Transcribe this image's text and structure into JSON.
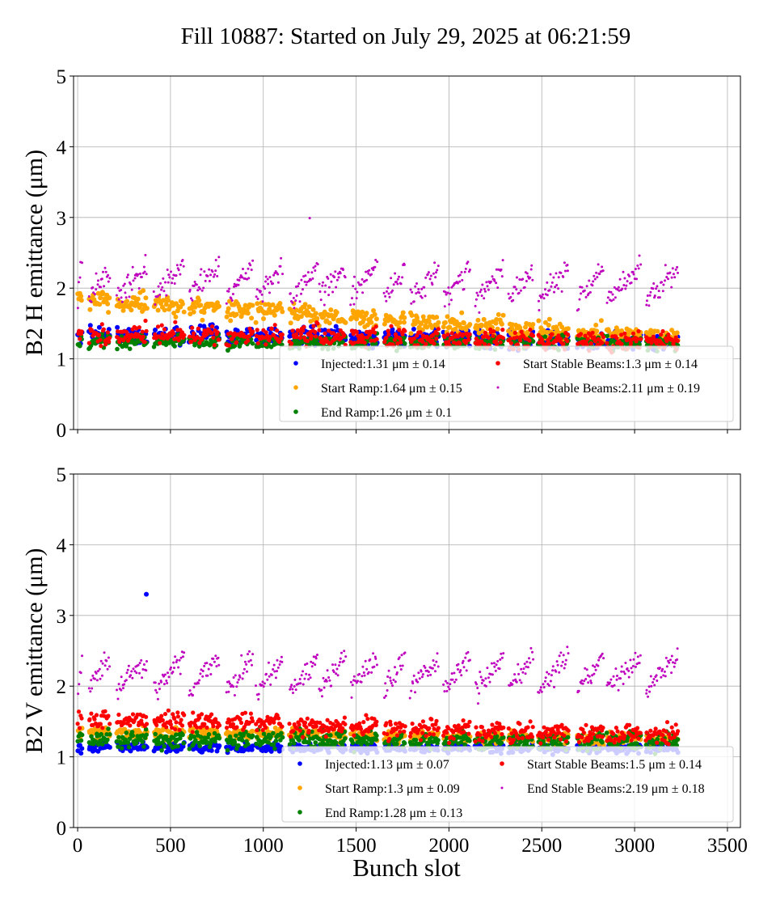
{
  "chart_data": {
    "type": "scatter",
    "title": "Fill 10887: Started on July 29, 2025 at 06:21:59",
    "xlabel": "Bunch slot",
    "xlim": [
      -22,
      3570
    ],
    "xticks": [
      0,
      500,
      1000,
      1500,
      2000,
      2500,
      3000,
      3500
    ],
    "grid": true,
    "trains": [
      [
        0,
        20
      ],
      [
        60,
        170
      ],
      [
        210,
        370
      ],
      [
        410,
        570
      ],
      [
        600,
        760
      ],
      [
        800,
        940
      ],
      [
        960,
        1100
      ],
      [
        1140,
        1290
      ],
      [
        1300,
        1440
      ],
      [
        1470,
        1610
      ],
      [
        1650,
        1760
      ],
      [
        1790,
        1940
      ],
      [
        1970,
        2110
      ],
      [
        2140,
        2290
      ],
      [
        2320,
        2450
      ],
      [
        2480,
        2640
      ],
      [
        2690,
        2830
      ],
      [
        2850,
        3030
      ],
      [
        3060,
        3230
      ]
    ],
    "panels": [
      {
        "ylabel": "B2 H emittance (μm)",
        "ylim": [
          0,
          5
        ],
        "yticks": [
          0,
          1,
          2,
          3,
          4,
          5
        ],
        "legend_placement": "lower-right",
        "series": [
          {
            "name": "Injected:1.31 μm ± 0.14",
            "color": "#0000ff",
            "mean": 1.31,
            "std": 0.14,
            "trend": [
              1.35,
              1.25
            ],
            "rise": 0.0
          },
          {
            "name": "Start Ramp:1.64 μm ± 0.15",
            "color": "#ffa500",
            "mean": 1.64,
            "std": 0.15,
            "trend": [
              1.85,
              1.3
            ],
            "rise": 0.0
          },
          {
            "name": "End Ramp:1.26 μm ± 0.1",
            "color": "#008000",
            "mean": 1.26,
            "std": 0.1,
            "trend": [
              1.25,
              1.22
            ],
            "rise": 0.05
          },
          {
            "name": "Start Stable Beams:1.3 μm ± 0.14",
            "color": "#ff0000",
            "mean": 1.3,
            "std": 0.14,
            "trend": [
              1.35,
              1.25
            ],
            "rise": 0.05
          },
          {
            "name": "End Stable Beams:2.11 μm ± 0.19",
            "color": "#bf00bf",
            "mean": 2.11,
            "std": 0.19,
            "trend": [
              2.1,
              2.05
            ],
            "rise": 0.45
          }
        ],
        "outliers": [
          {
            "series": 4,
            "x": 1250,
            "y": 2.99
          }
        ]
      },
      {
        "ylabel": "B2 V emittance (μm)",
        "ylim": [
          0,
          5
        ],
        "yticks": [
          0,
          1,
          2,
          3,
          4,
          5
        ],
        "legend_placement": "lower-right",
        "series": [
          {
            "name": "Injected:1.13 μm ± 0.07",
            "color": "#0000ff",
            "mean": 1.13,
            "std": 0.07,
            "trend": [
              1.13,
              1.12
            ],
            "rise": 0.0
          },
          {
            "name": "Start Ramp:1.3 μm ± 0.09",
            "color": "#ffa500",
            "mean": 1.3,
            "std": 0.09,
            "trend": [
              1.35,
              1.25
            ],
            "rise": 0.0
          },
          {
            "name": "End Ramp:1.28 μm ± 0.13",
            "color": "#008000",
            "mean": 1.28,
            "std": 0.13,
            "trend": [
              1.25,
              1.22
            ],
            "rise": 0.05
          },
          {
            "name": "Start Stable Beams:1.5 μm ± 0.14",
            "color": "#ff0000",
            "mean": 1.5,
            "std": 0.14,
            "trend": [
              1.55,
              1.3
            ],
            "rise": 0.05
          },
          {
            "name": "End Stable Beams:2.19 μm ± 0.18",
            "color": "#bf00bf",
            "mean": 2.19,
            "std": 0.18,
            "trend": [
              2.15,
              2.2
            ],
            "rise": 0.45
          }
        ],
        "outliers": [
          {
            "series": 0,
            "x": 370,
            "y": 3.3
          }
        ]
      }
    ]
  }
}
